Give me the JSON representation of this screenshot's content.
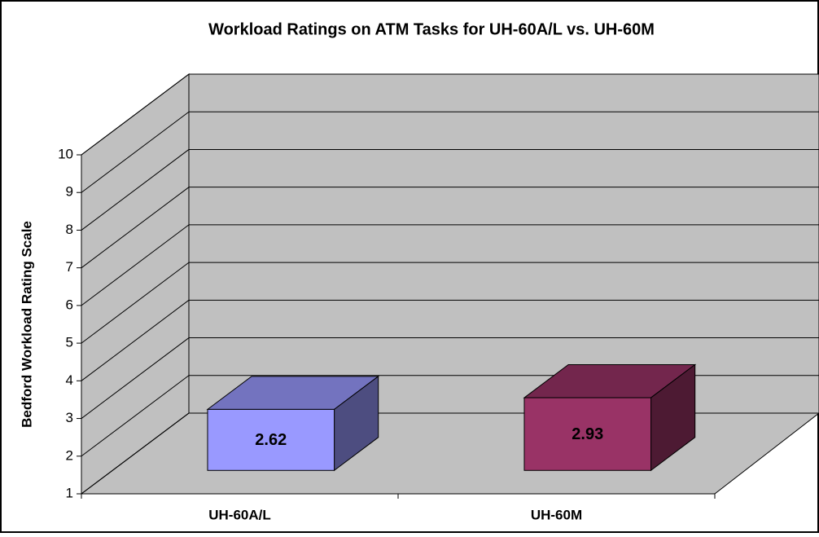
{
  "chart_data": {
    "type": "bar3d",
    "title": "Workload Ratings on ATM Tasks for UH-60A/L vs. UH-60M",
    "y_label": "Bedford Workload Rating Scale",
    "categories": [
      "UH-60A/L",
      "UH-60M"
    ],
    "values": [
      2.62,
      2.93
    ],
    "colors": [
      "#9999ff",
      "#993366"
    ],
    "ylim": [
      1,
      10
    ],
    "yticks": [
      1,
      2,
      3,
      4,
      5,
      6,
      7,
      8,
      9,
      10
    ],
    "grid": true
  }
}
